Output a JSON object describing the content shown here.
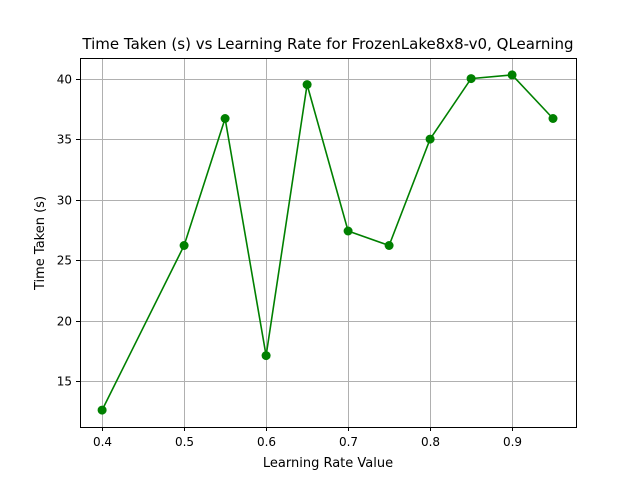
{
  "chart_data": {
    "type": "line",
    "title": "Time Taken (s) vs Learning Rate for FrozenLake8x8-v0, QLearning",
    "xlabel": "Learning Rate Value",
    "ylabel": "Time Taken (s)",
    "xlim": [
      0.373,
      0.978
    ],
    "ylim": [
      11.2,
      41.7
    ],
    "xticks": [
      0.4,
      0.5,
      0.6,
      0.7,
      0.8,
      0.9
    ],
    "xtick_labels": [
      "0.4",
      "0.5",
      "0.6",
      "0.7",
      "0.8",
      "0.9"
    ],
    "yticks": [
      15,
      20,
      25,
      30,
      35,
      40
    ],
    "ytick_labels": [
      "15",
      "20",
      "25",
      "30",
      "35",
      "40"
    ],
    "grid": true,
    "series": [
      {
        "color": "#008000",
        "marker": "circle",
        "x": [
          0.4,
          0.5,
          0.55,
          0.6,
          0.65,
          0.7,
          0.75,
          0.8,
          0.85,
          0.9,
          0.95
        ],
        "y": [
          12.6,
          26.2,
          36.7,
          17.1,
          39.5,
          27.4,
          26.2,
          35.0,
          40.0,
          40.3,
          36.7
        ]
      }
    ]
  }
}
